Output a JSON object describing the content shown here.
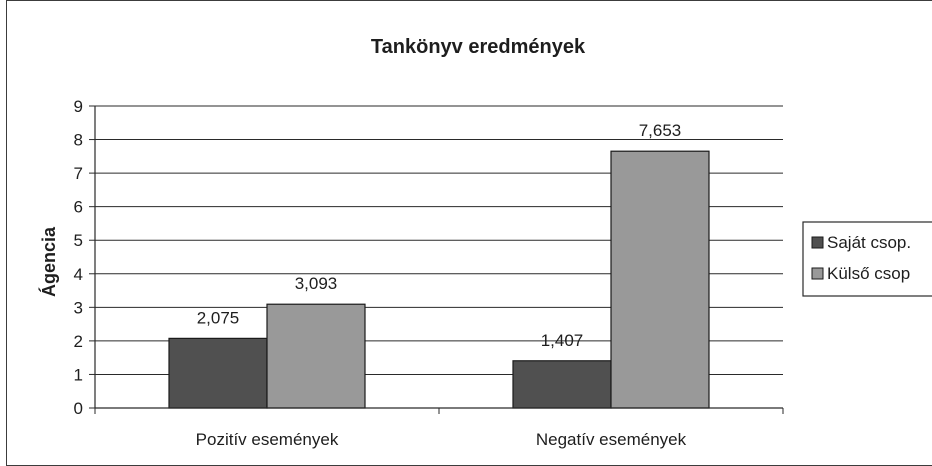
{
  "chart_data": {
    "type": "bar",
    "title": "Tankönyv eredmények",
    "xlabel": "",
    "ylabel": "Ágencia",
    "categories": [
      "Pozitív események",
      "Negatív események"
    ],
    "series": [
      {
        "name": "Saját csop.",
        "values": [
          2.075,
          1.407
        ],
        "labels": [
          "2,075",
          "1,407"
        ],
        "color": "#505050"
      },
      {
        "name": "Külső csop",
        "values": [
          3.093,
          7.653
        ],
        "labels": [
          "3,093",
          "7,653"
        ],
        "color": "#999999"
      }
    ],
    "ylim": [
      0,
      9
    ],
    "yticks": [
      "0",
      "1",
      "2",
      "3",
      "4",
      "5",
      "6",
      "7",
      "8",
      "9"
    ],
    "grid": true,
    "legend_position": "right"
  }
}
